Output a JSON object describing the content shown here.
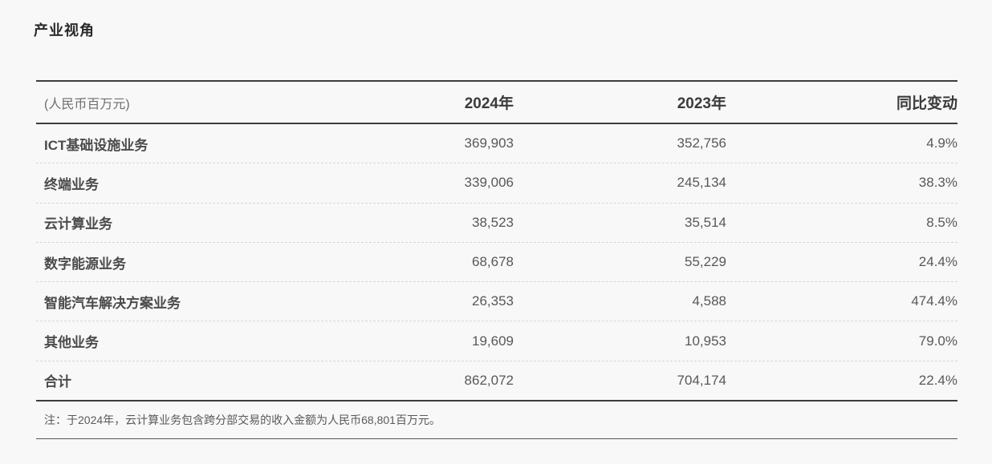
{
  "page": {
    "title": "产业视角",
    "note": "注：于2024年，云计算业务包含跨分部交易的收入金额为人民币68,801百万元。"
  },
  "table": {
    "unit_label": "(人民币百万元)",
    "columns": [
      "2024年",
      "2023年",
      "同比变动"
    ],
    "rows": [
      {
        "label": "ICT基础设施业务",
        "v2024": "369,903",
        "v2023": "352,756",
        "yoy": "4.9%"
      },
      {
        "label": "终端业务",
        "v2024": "339,006",
        "v2023": "245,134",
        "yoy": "38.3%"
      },
      {
        "label": "云计算业务",
        "v2024": "38,523",
        "v2023": "35,514",
        "yoy": "8.5%"
      },
      {
        "label": "数字能源业务",
        "v2024": "68,678",
        "v2023": "55,229",
        "yoy": "24.4%"
      },
      {
        "label": "智能汽车解决方案业务",
        "v2024": "26,353",
        "v2023": "4,588",
        "yoy": "474.4%"
      },
      {
        "label": "其他业务",
        "v2024": "19,609",
        "v2023": "10,953",
        "yoy": "79.0%"
      },
      {
        "label": "合计",
        "v2024": "862,072",
        "v2023": "704,174",
        "yoy": "22.4%"
      }
    ]
  },
  "colors": {
    "background": "#f8f8f8",
    "solid_rule": "#3d3d3d",
    "dotted_rule": "#d7d7d7",
    "title_text": "#2a2a2a",
    "header_text": "#3b3b3b",
    "unit_text": "#6f6f6f",
    "label_text": "#4b4b4b",
    "number_text": "#585858",
    "note_text": "#5a5a5a"
  }
}
